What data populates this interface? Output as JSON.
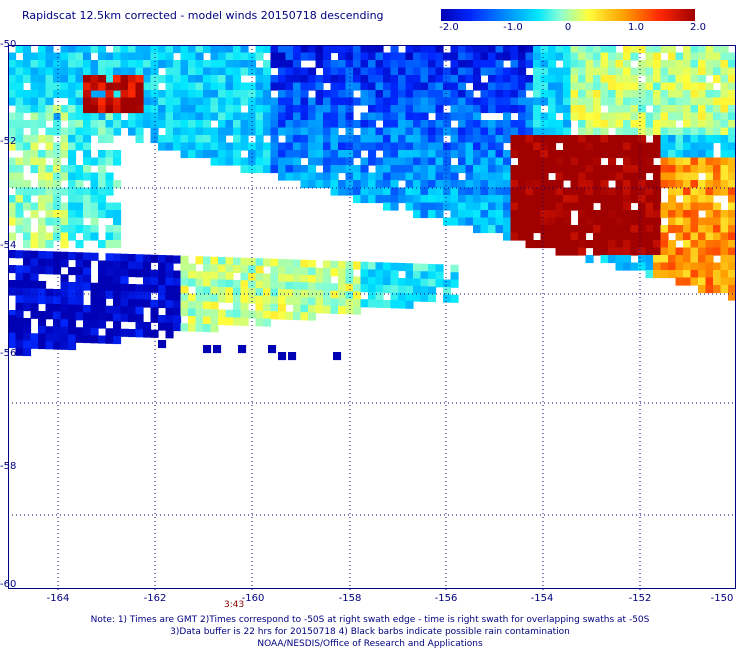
{
  "title": "Rapidscat 12.5km corrected - model winds 20150718 descending",
  "colorbar": {
    "labels": [
      "-2.0",
      "-1.0",
      "0",
      "1.0",
      "2.0"
    ],
    "colors": [
      "#0000b4",
      "#0028ff",
      "#0096ff",
      "#00e6ff",
      "#8cffd2",
      "#ffff3c",
      "#ffa000",
      "#ff2800",
      "#a00000"
    ]
  },
  "axes": {
    "lat_labels": [
      "-50",
      "-52",
      "-54",
      "-56",
      "-58",
      "-60"
    ],
    "lon_labels": [
      "-164",
      "-162",
      "-160",
      "-158",
      "-156",
      "-154",
      "-152",
      "-150"
    ]
  },
  "time_label": "3:43",
  "notes": [
    "Note: 1) Times are GMT 2)Times correspond to -50S at right swath edge - time is right swath for overlapping swaths at -50S",
    "3)Data buffer is 22 hrs for 20150718 4) Black barbs indicate possible rain contamination",
    "NOAA/NESDIS/Office of Research and Applications"
  ]
}
